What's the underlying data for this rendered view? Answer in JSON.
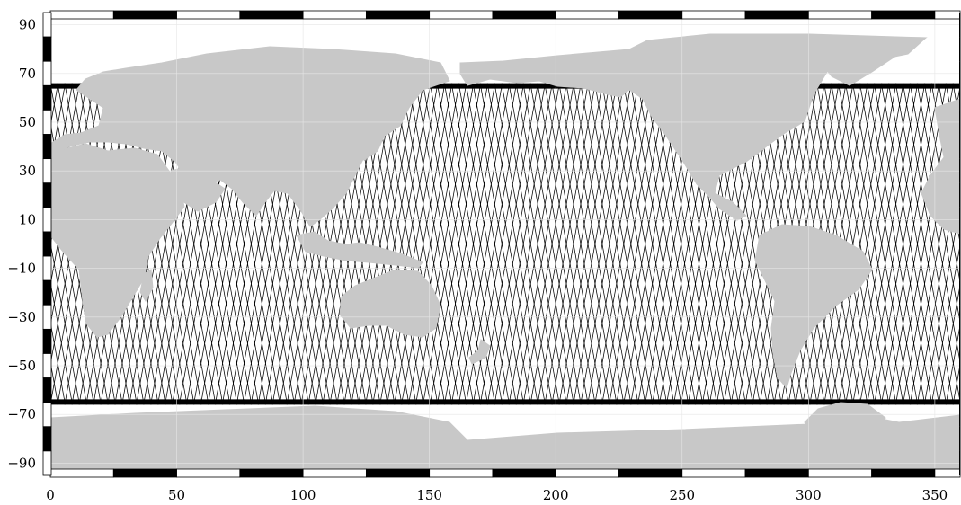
{
  "map": {
    "projection": "equirectangular",
    "lon_range": [
      0,
      360
    ],
    "lat_range": [
      -95,
      95
    ],
    "frame_style": "alternating black/white map frame, 25-degree segments",
    "colors": {
      "land": "#c8c8c8",
      "ocean": "#ffffff",
      "track_lines": "#000000",
      "frame": "#000000",
      "graticule": "#e6e6e6"
    },
    "x_ticks": [
      {
        "value": 0,
        "label": "0"
      },
      {
        "value": 50,
        "label": "50"
      },
      {
        "value": 100,
        "label": "100"
      },
      {
        "value": 150,
        "label": "150"
      },
      {
        "value": 200,
        "label": "200"
      },
      {
        "value": 250,
        "label": "250"
      },
      {
        "value": 300,
        "label": "300"
      },
      {
        "value": 350,
        "label": "350"
      }
    ],
    "y_ticks": [
      {
        "value": 90,
        "label": "90"
      },
      {
        "value": 70,
        "label": "70"
      },
      {
        "value": 50,
        "label": "50"
      },
      {
        "value": 30,
        "label": "30"
      },
      {
        "value": 10,
        "label": "10"
      },
      {
        "value": -10,
        "label": "−10"
      },
      {
        "value": -30,
        "label": "−30"
      },
      {
        "value": -50,
        "label": "−50"
      },
      {
        "value": -70,
        "label": "−70"
      },
      {
        "value": -90,
        "label": "−90"
      }
    ],
    "ground_tracks": {
      "description": "satellite altimeter ground tracks over ocean",
      "lat_limit": 66,
      "passes_per_cycle": 127
    }
  }
}
